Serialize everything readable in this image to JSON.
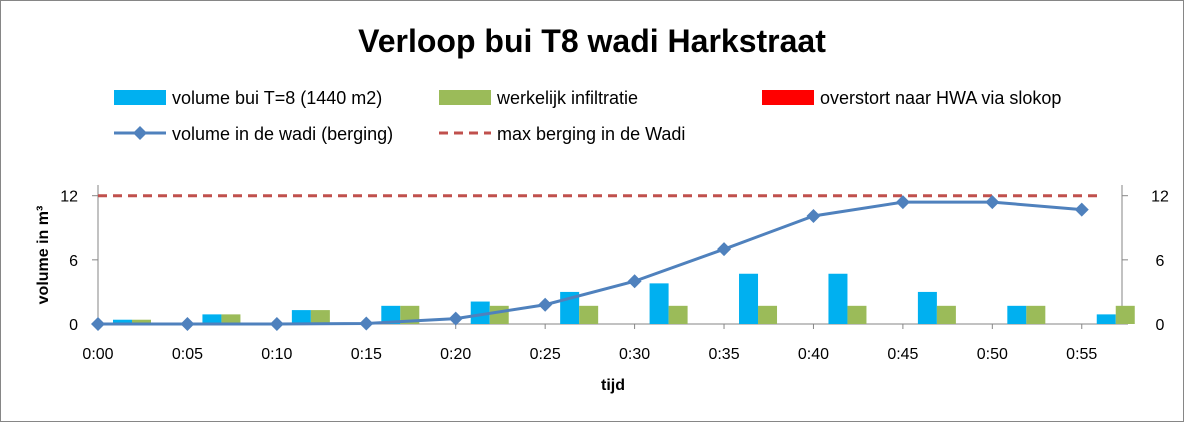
{
  "chart_data": {
    "type": "bar",
    "title": "Verloop bui T8 wadi Harkstraat",
    "xlabel": "tijd",
    "ylabel": "volume in  m³",
    "ylim": [
      0,
      13
    ],
    "y_ticks": [
      0,
      6,
      12
    ],
    "y2_ticks": [
      0,
      6,
      12
    ],
    "categories": [
      "0:00",
      "0:05",
      "0:10",
      "0:15",
      "0:20",
      "0:25",
      "0:30",
      "0:35",
      "0:40",
      "0:45",
      "0:50",
      "0:55"
    ],
    "series": [
      {
        "name": "volume bui T=8 (1440 m2)",
        "kind": "bar",
        "color": "#00B0F0",
        "values": [
          0.4,
          0.9,
          1.3,
          1.7,
          2.1,
          3.0,
          3.8,
          4.7,
          4.7,
          3.0,
          1.7,
          0.9
        ]
      },
      {
        "name": "werkelijk infiltratie",
        "kind": "bar",
        "color": "#9BBB59",
        "values": [
          0.4,
          0.9,
          1.3,
          1.7,
          1.7,
          1.7,
          1.7,
          1.7,
          1.7,
          1.7,
          1.7,
          1.7
        ]
      },
      {
        "name": "overstort naar HWA via slokop",
        "kind": "bar",
        "color": "#FF0000",
        "values": [
          0,
          0,
          0,
          0,
          0,
          0,
          0,
          0,
          0,
          0,
          0,
          0
        ]
      },
      {
        "name": "volume in de wadi (berging)",
        "kind": "line",
        "color": "#4F81BD",
        "values": [
          0,
          0,
          0,
          0.05,
          0.5,
          1.8,
          4.0,
          7.0,
          10.1,
          11.4,
          11.4,
          10.7
        ]
      },
      {
        "name": "max berging in de Wadi",
        "kind": "dashed",
        "color": "#C0504D",
        "values": [
          12,
          12,
          12,
          12,
          12,
          12,
          12,
          12,
          12,
          12,
          12,
          12
        ]
      }
    ],
    "grid": false,
    "legend_position": "top"
  }
}
